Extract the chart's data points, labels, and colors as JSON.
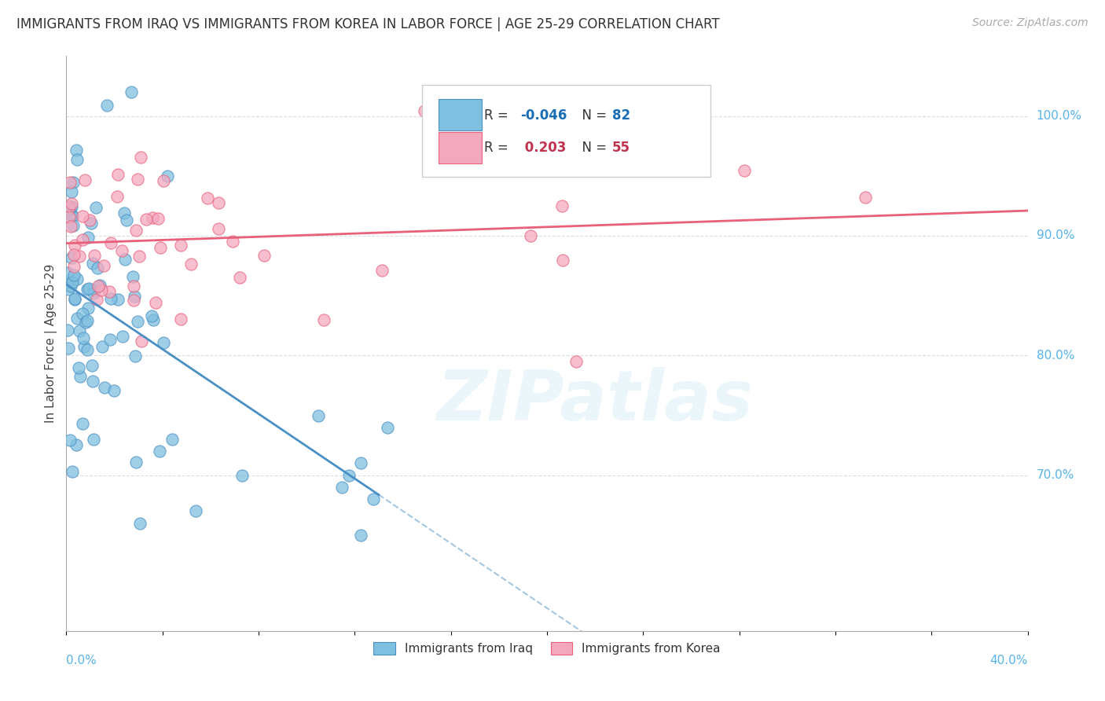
{
  "title": "IMMIGRANTS FROM IRAQ VS IMMIGRANTS FROM KOREA IN LABOR FORCE | AGE 25-29 CORRELATION CHART",
  "source": "Source: ZipAtlas.com",
  "ylabel_label": "In Labor Force | Age 25-29",
  "legend_iraq": "Immigrants from Iraq",
  "legend_korea": "Immigrants from Korea",
  "R_iraq": -0.046,
  "N_iraq": 82,
  "R_korea": 0.203,
  "N_korea": 55,
  "color_iraq": "#7fbfdf",
  "color_korea": "#f4a8be",
  "trendline_iraq": "#4a90c4",
  "trendline_korea": "#e8607a",
  "xmin": 0.0,
  "xmax": 40.0,
  "ymin": 57.0,
  "ymax": 105.0,
  "ytick_vals": [
    70.0,
    80.0,
    90.0,
    100.0
  ],
  "ytick_labels": [
    "70.0%",
    "80.0%",
    "90.0%",
    "100.0%"
  ],
  "watermark_text": "ZIPatlas",
  "background_color": "#ffffff",
  "grid_color": "#dddddd",
  "tick_color": "#56b4e9",
  "legend_R_iraq_color": "#1a6eb5",
  "legend_R_korea_color": "#c0334d",
  "legend_N_color": "#333333"
}
